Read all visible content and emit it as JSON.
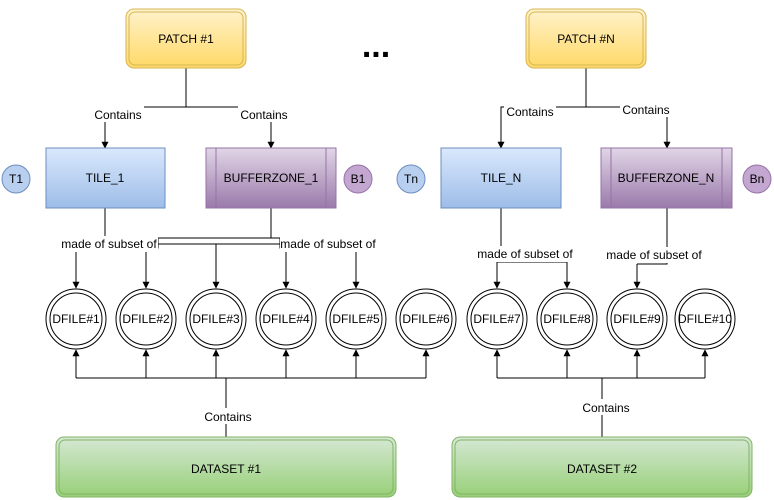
{
  "patches": [
    {
      "label": "PATCH #1"
    },
    {
      "label": "PATCH #N"
    }
  ],
  "ellipsis": "...",
  "tiles": [
    {
      "label": "TILE_1",
      "badge": "T1"
    },
    {
      "label": "TILE_N",
      "badge": "Tn"
    }
  ],
  "bufferzones": [
    {
      "label": "BUFFERZONE_1",
      "badge": "B1"
    },
    {
      "label": "BUFFERZONE_N",
      "badge": "Bn"
    }
  ],
  "edge_labels": {
    "contains": "Contains",
    "made_of_subset_of": "made of subset of"
  },
  "dfiles": [
    "DFILE#1",
    "DFILE#2",
    "DFILE#3",
    "DFILE#4",
    "DFILE#5",
    "DFILE#6",
    "DFILE#7",
    "DFILE#8",
    "DFILE#9",
    "DFILE#10"
  ],
  "datasets": [
    {
      "label": "DATASET #1"
    },
    {
      "label": "DATASET #2"
    }
  ],
  "colors": {
    "patch_fill": "#fff2cc",
    "patch_stroke": "#d6b656",
    "tile_fill": "#bcd3f0",
    "tile_stroke": "#6c8ebf",
    "buffer_fill": "#c7b0d4",
    "buffer_stroke": "#9673a6",
    "dataset_fill": "#c6e6a8",
    "dataset_stroke": "#82b366"
  }
}
